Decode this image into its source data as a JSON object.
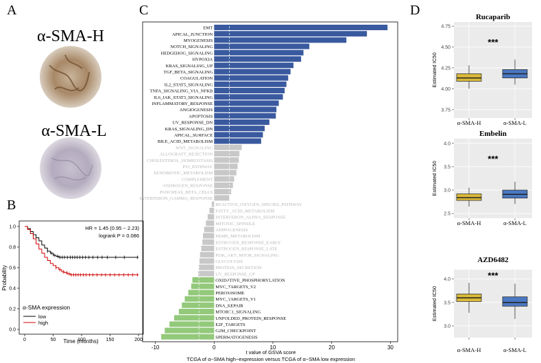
{
  "panel_letters": {
    "a": "A",
    "b": "B",
    "c": "C",
    "d": "D"
  },
  "panel_a": {
    "high_label": "α-SMA-H",
    "low_label": "α-SMA-L"
  },
  "chart_data": [
    {
      "panel": "B",
      "type": "line",
      "subtype": "kaplan-meier",
      "ylabel": "Probability",
      "xlabel": "Time (months)",
      "xlim": [
        0,
        200
      ],
      "ylim": [
        0,
        1.0
      ],
      "xticks": [
        0,
        50,
        100,
        150,
        200
      ],
      "yticks": [
        0.0,
        0.2,
        0.4,
        0.6,
        0.8,
        1.0
      ],
      "hr_text": "HR = 1.45 (0.95 − 2.23)",
      "logrank_text": "logrank P = 0.086",
      "legend_title": "α-SMA expression",
      "series": [
        {
          "name": "low",
          "color": "#000000",
          "points": [
            [
              0,
              1.0
            ],
            [
              5,
              0.98
            ],
            [
              10,
              0.95
            ],
            [
              15,
              0.92
            ],
            [
              20,
              0.89
            ],
            [
              25,
              0.86
            ],
            [
              30,
              0.82
            ],
            [
              35,
              0.79
            ],
            [
              40,
              0.76
            ],
            [
              45,
              0.74
            ],
            [
              50,
              0.72
            ],
            [
              55,
              0.71
            ],
            [
              60,
              0.7
            ],
            [
              70,
              0.7
            ],
            [
              100,
              0.7
            ],
            [
              150,
              0.7
            ],
            [
              200,
              0.7
            ]
          ],
          "censors": [
            40,
            47,
            52,
            58,
            62,
            66,
            70,
            75,
            80,
            84,
            88,
            92,
            97,
            102,
            107,
            113,
            120,
            128,
            136,
            145,
            160,
            175,
            198
          ]
        },
        {
          "name": "high",
          "color": "#cc0000",
          "points": [
            [
              0,
              1.0
            ],
            [
              5,
              0.97
            ],
            [
              10,
              0.93
            ],
            [
              15,
              0.88
            ],
            [
              20,
              0.83
            ],
            [
              25,
              0.78
            ],
            [
              30,
              0.74
            ],
            [
              35,
              0.7
            ],
            [
              40,
              0.67
            ],
            [
              45,
              0.64
            ],
            [
              50,
              0.62
            ],
            [
              55,
              0.6
            ],
            [
              60,
              0.58
            ],
            [
              65,
              0.56
            ],
            [
              70,
              0.55
            ],
            [
              75,
              0.54
            ],
            [
              80,
              0.53
            ],
            [
              200,
              0.53
            ]
          ],
          "censors": [
            55,
            62,
            68,
            74,
            78,
            82,
            86,
            90,
            94,
            98,
            103,
            108,
            114,
            120,
            127,
            135,
            142,
            150,
            158,
            166,
            174,
            182,
            190,
            198
          ]
        }
      ]
    },
    {
      "panel": "C",
      "type": "bar",
      "orientation": "horizontal",
      "xlabel": "t value of GSVA score",
      "caption": "TCGA of α−SMA high−expression versus TCGA of α−SMA low expression",
      "xlim": [
        -11,
        31
      ],
      "xticks": [
        -10,
        0,
        10,
        20,
        30
      ],
      "threshold_lines": [
        -2.58,
        2.58
      ],
      "colors": {
        "up": "#3a5a9f",
        "neutral": "#c8c8c8",
        "down": "#93c97b"
      },
      "series": [
        {
          "name": "EMT",
          "value": 29.5,
          "group": "up"
        },
        {
          "name": "APICAL_JUNCTION",
          "value": 26.0,
          "group": "up"
        },
        {
          "name": "MYOGENESIS",
          "value": 22.5,
          "group": "up"
        },
        {
          "name": "NOTCH_SIGNALING",
          "value": 16.2,
          "group": "up"
        },
        {
          "name": "HEDGEHOG_SIGNALING",
          "value": 15.2,
          "group": "up"
        },
        {
          "name": "HYPOXIA",
          "value": 14.8,
          "group": "up"
        },
        {
          "name": "KRAS_SIGNALING_UP",
          "value": 13.5,
          "group": "up"
        },
        {
          "name": "TGF_BETA_SIGNALING",
          "value": 13.0,
          "group": "up"
        },
        {
          "name": "COAGULATION",
          "value": 12.6,
          "group": "up"
        },
        {
          "name": "IL2_STAT5_SIGNALING",
          "value": 12.3,
          "group": "up"
        },
        {
          "name": "TNFA_SIGNALING_VIA_NFKB",
          "value": 12.0,
          "group": "up"
        },
        {
          "name": "IL6_JAK_STAT3_SIGNALING",
          "value": 11.7,
          "group": "up"
        },
        {
          "name": "INFLAMMATORY_RESPONSE",
          "value": 11.0,
          "group": "up"
        },
        {
          "name": "ANGIOGENESIS",
          "value": 10.6,
          "group": "up"
        },
        {
          "name": "APOPTOSIS",
          "value": 10.5,
          "group": "up"
        },
        {
          "name": "UV_RESPONSE_DN",
          "value": 9.4,
          "group": "up"
        },
        {
          "name": "KRAS_SIGNALING_DN",
          "value": 8.6,
          "group": "up"
        },
        {
          "name": "APICAL_SURFACE",
          "value": 8.3,
          "group": "up"
        },
        {
          "name": "BILE_ACID_METABOLISM",
          "value": 8.0,
          "group": "up"
        },
        {
          "name": "WNT_SIGNALING",
          "value": 4.7,
          "group": "neutral"
        },
        {
          "name": "ALLOGRAFT_REJECTION",
          "value": 4.3,
          "group": "neutral"
        },
        {
          "name": "CHOLESTEROL_HOMEOSTASIS",
          "value": 4.2,
          "group": "neutral"
        },
        {
          "name": "P53_PATHWAY",
          "value": 4.0,
          "group": "neutral"
        },
        {
          "name": "XENOBIOTIC_METABOLISM",
          "value": 3.8,
          "group": "neutral"
        },
        {
          "name": "COMPLEMENT",
          "value": 3.4,
          "group": "neutral"
        },
        {
          "name": "ANDROGEN_RESPONSE",
          "value": 3.2,
          "group": "neutral"
        },
        {
          "name": "PANCREAS_BETA_CELLS",
          "value": 2.9,
          "group": "neutral"
        },
        {
          "name": "INTERFERON_GAMMA_RESPONSE",
          "value": 2.6,
          "group": "neutral"
        },
        {
          "name": "REACTIVE_OXYGEN_SPECIES_PATHWAY",
          "value": -0.4,
          "group": "neutral"
        },
        {
          "name": "FATTY_ACID_METABOLISM",
          "value": -0.8,
          "group": "neutral"
        },
        {
          "name": "INTERFERON_ALPHA_RESPONSE",
          "value": -1.1,
          "group": "neutral"
        },
        {
          "name": "MITOTIC_SPINDLE",
          "value": -1.4,
          "group": "neutral"
        },
        {
          "name": "ADIPOGENESIS",
          "value": -1.7,
          "group": "neutral"
        },
        {
          "name": "HEME_METABOLISM",
          "value": -1.9,
          "group": "neutral"
        },
        {
          "name": "ESTROGEN_RESPONSE_EARLY",
          "value": -2.0,
          "group": "neutral"
        },
        {
          "name": "ESTROGEN_RESPONSE_LATE",
          "value": -2.2,
          "group": "neutral"
        },
        {
          "name": "PI3K_AKT_MTOR_SIGNALING",
          "value": -2.4,
          "group": "neutral"
        },
        {
          "name": "GLYCOLYSIS",
          "value": -2.5,
          "group": "neutral"
        },
        {
          "name": "PROTEIN_SECRETION",
          "value": -2.6,
          "group": "neutral"
        },
        {
          "name": "UV_RESPONSE_UP",
          "value": -2.7,
          "group": "neutral"
        },
        {
          "name": "OXIDATIVE_PHOSPHORYLATION",
          "value": -3.7,
          "group": "down"
        },
        {
          "name": "MYC_TARGETS_V2",
          "value": -3.9,
          "group": "down"
        },
        {
          "name": "PEROXISOME",
          "value": -4.4,
          "group": "down"
        },
        {
          "name": "MYC_TARGETS_V1",
          "value": -5.0,
          "group": "down"
        },
        {
          "name": "DNA_REPAIR",
          "value": -5.5,
          "group": "down"
        },
        {
          "name": "MTORC1_SIGNALING",
          "value": -6.0,
          "group": "down"
        },
        {
          "name": "UNFOLDED_PROTEIN_RESPONSE",
          "value": -6.8,
          "group": "down"
        },
        {
          "name": "E2F_TARGETS",
          "value": -7.6,
          "group": "down"
        },
        {
          "name": "G2M_CHECKPOINT",
          "value": -8.4,
          "group": "down"
        },
        {
          "name": "SPERMATOGENESIS",
          "value": -9.0,
          "group": "down"
        }
      ]
    },
    {
      "panel": "D",
      "type": "box",
      "title": "Rucaparib",
      "ylabel": "Estimated IC50",
      "ylim": [
        3.65,
        4.8
      ],
      "yticks": [
        "3.75",
        "4.00",
        "4.25",
        "4.50",
        "4.75"
      ],
      "significance": "***",
      "categories": [
        "α-SMA-H",
        "α-SMA-L"
      ],
      "colors": [
        "#d9b93a",
        "#4a78c2"
      ],
      "boxes": [
        {
          "min": 4.0,
          "q1": 4.09,
          "median": 4.13,
          "q3": 4.18,
          "max": 4.28
        },
        {
          "min": 4.05,
          "q1": 4.13,
          "median": 4.18,
          "q3": 4.23,
          "max": 4.35
        }
      ]
    },
    {
      "panel": "D",
      "type": "box",
      "title": "Embelin",
      "ylabel": "Estimated IC50",
      "ylim": [
        2.4,
        4.1
      ],
      "yticks": [
        "2.5",
        "3.0",
        "3.5",
        "4.0"
      ],
      "significance": "***",
      "categories": [
        "α-SMA-H",
        "α-SMA-L"
      ],
      "colors": [
        "#d9b93a",
        "#4a78c2"
      ],
      "boxes": [
        {
          "min": 2.65,
          "q1": 2.78,
          "median": 2.84,
          "q3": 2.92,
          "max": 3.05
        },
        {
          "min": 2.7,
          "q1": 2.83,
          "median": 2.91,
          "q3": 3.0,
          "max": 3.18
        }
      ]
    },
    {
      "panel": "D",
      "type": "box",
      "title": "AZD6482",
      "ylabel": "Estimated IC50",
      "ylim": [
        2.75,
        4.2
      ],
      "yticks": [
        "3.0",
        "3.5",
        "4.0"
      ],
      "significance": "***",
      "categories": [
        "α-SMA-H",
        "α-SMA-L"
      ],
      "colors": [
        "#d9b93a",
        "#4a78c2"
      ],
      "boxes": [
        {
          "min": 3.28,
          "q1": 3.52,
          "median": 3.6,
          "q3": 3.68,
          "max": 3.92
        },
        {
          "min": 3.15,
          "q1": 3.42,
          "median": 3.5,
          "q3": 3.62,
          "max": 3.9
        }
      ]
    }
  ]
}
